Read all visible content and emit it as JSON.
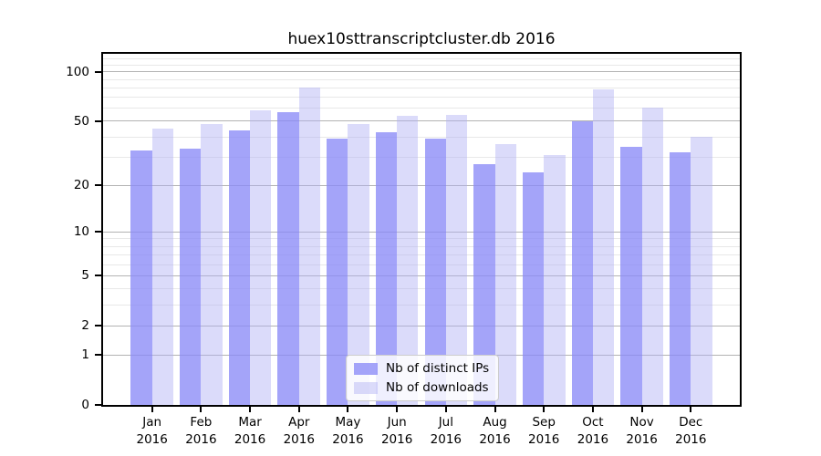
{
  "chart_data": {
    "type": "bar",
    "title": "huex10sttranscriptcluster.db 2016",
    "categories": [
      "Jan 2016",
      "Feb 2016",
      "Mar 2016",
      "Apr 2016",
      "May 2016",
      "Jun 2016",
      "Jul 2016",
      "Aug 2016",
      "Sep 2016",
      "Oct 2016",
      "Nov 2016",
      "Dec 2016"
    ],
    "x_tick_line1": [
      "Jan",
      "Feb",
      "Mar",
      "Apr",
      "May",
      "Jun",
      "Jul",
      "Aug",
      "Sep",
      "Oct",
      "Nov",
      "Dec"
    ],
    "x_tick_line2": [
      "2016",
      "2016",
      "2016",
      "2016",
      "2016",
      "2016",
      "2016",
      "2016",
      "2016",
      "2016",
      "2016",
      "2016"
    ],
    "series": [
      {
        "name": "Nb of distinct IPs",
        "color": "#a8a8f8",
        "values": [
          33,
          34,
          44,
          57,
          39,
          43,
          39,
          27,
          24,
          50,
          35,
          32
        ]
      },
      {
        "name": "Nb of downloads",
        "color": "#dadafa",
        "values": [
          45,
          48,
          58,
          80,
          48,
          54,
          55,
          36,
          31,
          78,
          61,
          40
        ]
      }
    ],
    "yscale": "log1p",
    "ylim": [
      0,
      130
    ],
    "y_ticks": [
      0,
      1,
      2,
      5,
      10,
      20,
      50,
      100
    ],
    "y_minor_gridlines": [
      3,
      4,
      6,
      7,
      8,
      9,
      30,
      40,
      60,
      70,
      80,
      90,
      110,
      120
    ],
    "grid": "on",
    "legend_position": "lower center"
  },
  "colors": {
    "bar_distinct_ips": "#a8a8f8",
    "bar_downloads": "#dadafa",
    "major_grid": "#b3b3b3",
    "minor_grid": "#e8e8e8",
    "axis": "#000000",
    "background": "#ffffff"
  }
}
